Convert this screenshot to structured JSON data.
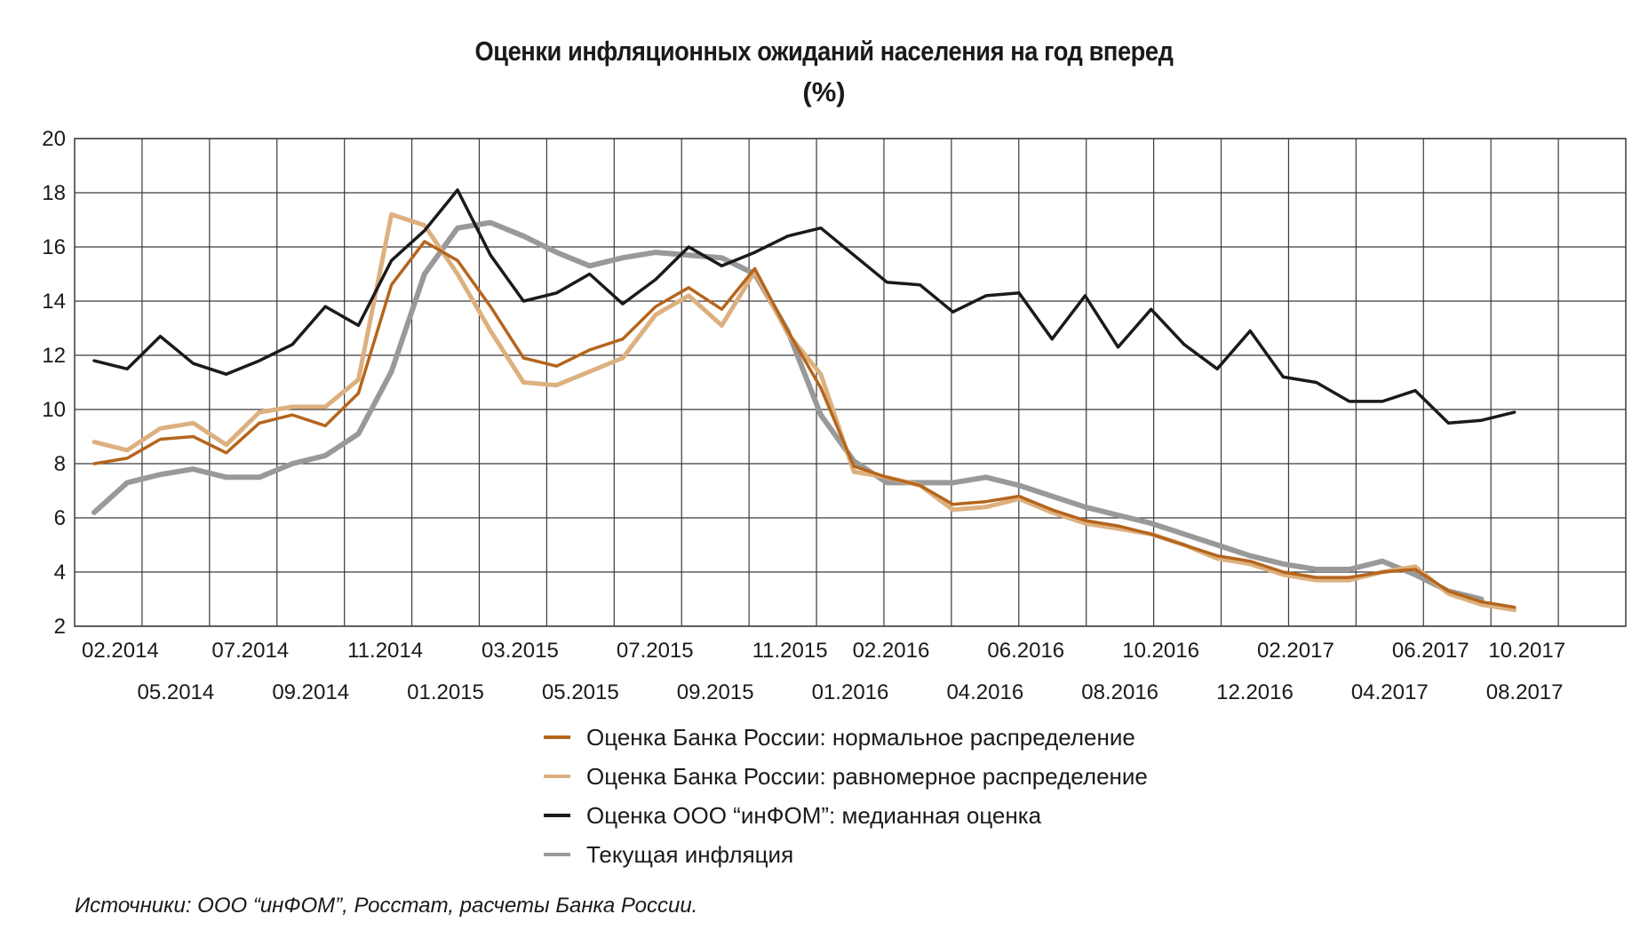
{
  "chart_data": {
    "type": "line",
    "title": "Оценки инфляционных ожиданий населения на год вперед",
    "subtitle": "(%)",
    "ylim": [
      2,
      20
    ],
    "y_ticks": [
      2,
      4,
      6,
      8,
      10,
      12,
      14,
      16,
      18,
      20
    ],
    "grid": true,
    "x": [
      "02.2014",
      "03.2014",
      "04.2014",
      "05.2014",
      "06.2014",
      "07.2014",
      "08.2014",
      "09.2014",
      "10.2014",
      "11.2014",
      "12.2014",
      "01.2015",
      "02.2015",
      "03.2015",
      "04.2015",
      "05.2015",
      "06.2015",
      "07.2015",
      "08.2015",
      "09.2015",
      "10.2015",
      "11.2015",
      "12.2015",
      "01.2016",
      "02.2016",
      "03.2016",
      "04.2016",
      "05.2016",
      "06.2016",
      "07.2016",
      "08.2016",
      "09.2016",
      "10.2016",
      "11.2016",
      "12.2016",
      "01.2017",
      "02.2017",
      "03.2017",
      "04.2017",
      "05.2017",
      "06.2017",
      "07.2017",
      "08.2017",
      "09.2017",
      "10.2017"
    ],
    "x_tick_labels_upper": [
      "02.2014",
      "07.2014",
      "11.2014",
      "03.2015",
      "07.2015",
      "11.2015",
      "02.2016",
      "06.2016",
      "10.2016",
      "02.2017",
      "06.2017",
      "10.2017"
    ],
    "x_tick_labels_lower": [
      "05.2014",
      "09.2014",
      "01.2015",
      "05.2015",
      "09.2015",
      "01.2016",
      "04.2016",
      "08.2016",
      "12.2016",
      "04.2017",
      "08.2017"
    ],
    "series": [
      {
        "name": "Оценка Банка России: нормальное распределение",
        "color": "#b5651d",
        "values": [
          8.0,
          8.2,
          8.9,
          9.0,
          8.4,
          9.5,
          9.8,
          9.4,
          10.6,
          14.6,
          16.2,
          15.5,
          13.8,
          11.9,
          11.6,
          12.2,
          12.6,
          13.8,
          14.5,
          13.7,
          15.2,
          12.9,
          10.8,
          7.9,
          7.5,
          7.2,
          6.5,
          6.6,
          6.8,
          6.3,
          5.9,
          5.7,
          5.4,
          5.0,
          4.6,
          4.4,
          4.0,
          3.8,
          3.8,
          4.0,
          4.1,
          3.3,
          2.9,
          2.7,
          null
        ],
        "x_start_index": 0
      },
      {
        "name": "Оценка Банка России: равномерное распределение",
        "color": "#ddb07f",
        "values": [
          8.8,
          8.5,
          9.3,
          9.5,
          8.7,
          9.9,
          10.1,
          10.1,
          11.1,
          17.2,
          16.8,
          15.0,
          12.9,
          11.0,
          10.9,
          11.4,
          11.9,
          13.5,
          14.2,
          13.1,
          15.1,
          12.8,
          11.3,
          7.7,
          7.5,
          7.2,
          6.3,
          6.4,
          6.7,
          6.2,
          5.8,
          5.6,
          5.4,
          5.0,
          4.5,
          4.3,
          3.9,
          3.7,
          3.7,
          4.0,
          4.2,
          3.2,
          2.8,
          2.6,
          null
        ],
        "x_start_index": 0
      },
      {
        "name": "Оценка ООО “инФОМ”: медианная оценка",
        "color": "#1a1a1a",
        "values": [
          11.8,
          11.5,
          12.7,
          11.7,
          11.3,
          11.8,
          12.4,
          13.8,
          13.1,
          15.5,
          16.6,
          18.1,
          15.7,
          14.0,
          14.3,
          15.0,
          13.9,
          14.8,
          16.0,
          15.3,
          15.8,
          16.4,
          16.7,
          15.7,
          14.7,
          14.6,
          13.6,
          14.2,
          14.3,
          12.6,
          14.2,
          12.3,
          13.7,
          12.4,
          11.5,
          12.9,
          11.2,
          11.0,
          10.3,
          10.3,
          10.7,
          9.5,
          9.6,
          9.9,
          null
        ],
        "x_start_index": 0
      },
      {
        "name": "Текущая инфляция",
        "color": "#999999",
        "values": [
          6.2,
          7.3,
          7.6,
          7.8,
          7.5,
          7.5,
          8.0,
          8.3,
          9.1,
          11.4,
          15.0,
          16.7,
          16.9,
          16.4,
          15.8,
          15.3,
          15.6,
          15.8,
          15.7,
          15.6,
          15.0,
          12.9,
          9.8,
          8.1,
          7.3,
          7.3,
          7.3,
          7.5,
          7.2,
          6.8,
          6.4,
          6.1,
          5.8,
          5.4,
          5.0,
          4.6,
          4.3,
          4.1,
          4.1,
          4.4,
          3.9,
          3.3,
          3.0,
          null,
          null
        ],
        "x_start_index": 0
      }
    ]
  },
  "legend": {
    "items": [
      {
        "label": "Оценка Банка России: нормальное распределение",
        "color": "#b5651d"
      },
      {
        "label": "Оценка Банка России: равномерное распределение",
        "color": "#ddb07f"
      },
      {
        "label": "Оценка ООО “инФОМ”: медианная оценка",
        "color": "#1a1a1a"
      },
      {
        "label": "Текущая инфляция",
        "color": "#999999"
      }
    ]
  },
  "source_note": "Источники: ООО “инФОМ”, Росстат, расчеты Банка России."
}
